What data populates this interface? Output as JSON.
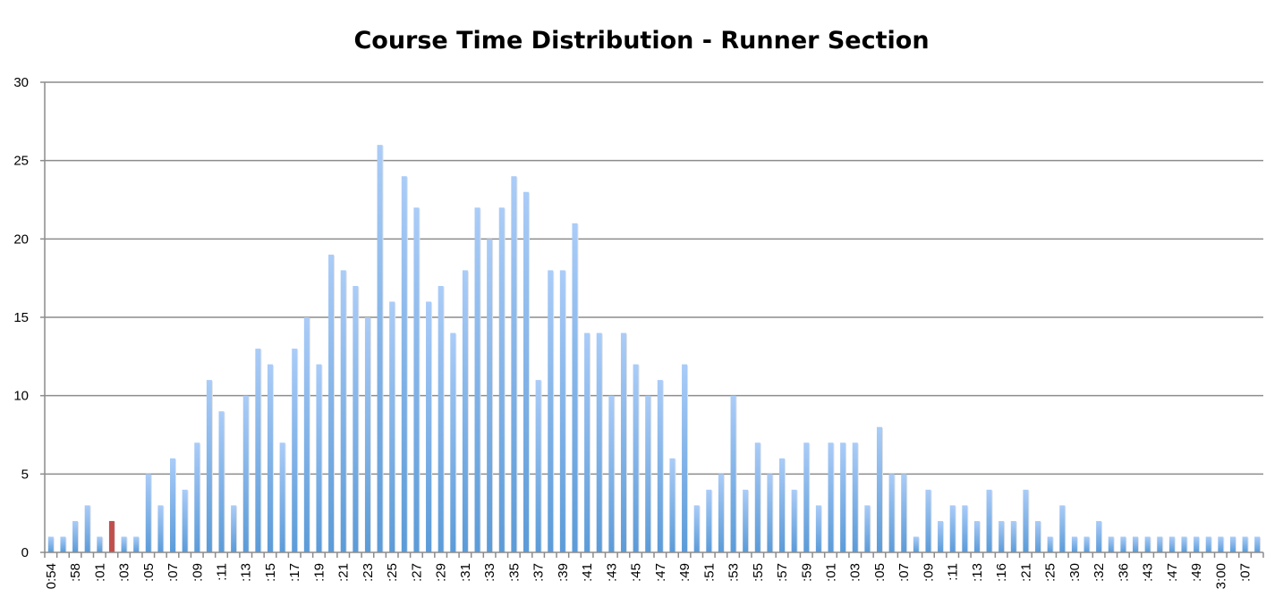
{
  "chart_data": {
    "type": "bar",
    "title": "Course Time Distribution - Runner Section",
    "xlabel": "",
    "ylabel": "",
    "ylim": [
      0,
      30
    ],
    "yticks": [
      0,
      5,
      10,
      15,
      20,
      25,
      30
    ],
    "grid": true,
    "colors": {
      "default": "#6fa6e6",
      "highlight": "#c0504d",
      "grid": "#8c8c8c"
    },
    "highlight_index": 5,
    "categories": [
      "0:54",
      "",
      ":58",
      "",
      ":01",
      "",
      ":03",
      "",
      ":05",
      "",
      ":07",
      "",
      ":09",
      "",
      ":11",
      "",
      ":13",
      "",
      ":15",
      "",
      ":17",
      "",
      ":19",
      "",
      ":21",
      "",
      ":23",
      "",
      ":25",
      "",
      ":27",
      "",
      ":29",
      "",
      ":31",
      "",
      ":33",
      "",
      ":35",
      "",
      ":37",
      "",
      ":39",
      "",
      ":41",
      "",
      ":43",
      "",
      ":45",
      "",
      ":47",
      "",
      ":49",
      "",
      ":51",
      "",
      ":53",
      "",
      ":55",
      "",
      ":57",
      "",
      ":59",
      "",
      ":01",
      "",
      ":03",
      "",
      ":05",
      "",
      ":07",
      "",
      ":09",
      "",
      ":11",
      "",
      ":13",
      "",
      ":16",
      "",
      ":21",
      "",
      ":25",
      "",
      ":30",
      "",
      ":32",
      "",
      ":36",
      "",
      ":43",
      "",
      ":47",
      "",
      ":49",
      "",
      "3:00",
      "",
      ":07",
      ""
    ],
    "values": [
      1,
      1,
      2,
      3,
      1,
      2,
      1,
      1,
      5,
      3,
      6,
      4,
      7,
      11,
      9,
      3,
      10,
      13,
      12,
      7,
      13,
      15,
      12,
      19,
      18,
      17,
      15,
      26,
      16,
      24,
      22,
      16,
      17,
      14,
      18,
      22,
      20,
      22,
      24,
      23,
      11,
      18,
      18,
      21,
      14,
      14,
      10,
      14,
      12,
      10,
      11,
      6,
      12,
      3,
      4,
      5,
      10,
      4,
      7,
      5,
      6,
      4,
      7,
      3,
      7,
      7,
      7,
      3,
      8,
      5,
      5,
      1,
      4,
      2,
      3,
      3,
      2,
      4,
      2,
      2,
      4,
      2,
      1,
      3,
      1,
      1,
      2,
      1,
      1,
      1,
      1,
      1,
      1,
      1,
      1,
      1,
      1,
      1,
      1,
      1
    ]
  }
}
